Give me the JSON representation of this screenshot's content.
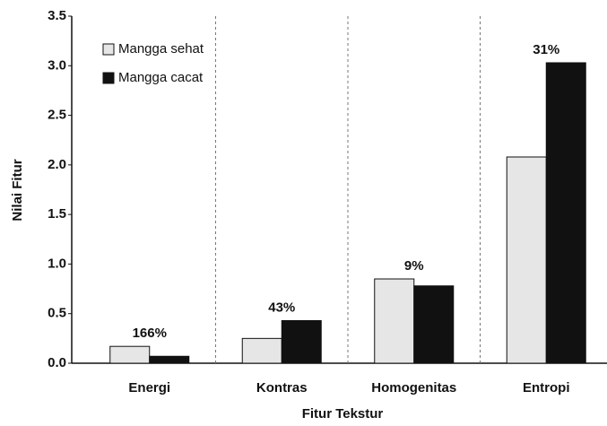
{
  "chart_data": {
    "type": "bar",
    "categories": [
      "Energi",
      "Kontras",
      "Homogenitas",
      "Entropi"
    ],
    "series": [
      {
        "name": "Mangga sehat",
        "color": "#e6e6e6",
        "values": [
          0.17,
          0.25,
          0.85,
          2.08
        ]
      },
      {
        "name": "Mangga cacat",
        "color": "#111111",
        "values": [
          0.07,
          0.43,
          0.78,
          3.03
        ]
      }
    ],
    "annotations": [
      "166%",
      "43%",
      "9%",
      "31%"
    ],
    "xlabel": "Fitur Tekstur",
    "ylabel": "Nilai Fitur",
    "ylim": [
      0,
      3.5
    ],
    "yticks": [
      {
        "value": 0,
        "label": "0.0"
      },
      {
        "value": 0.5,
        "label": "0.5"
      },
      {
        "value": 1,
        "label": "1.0"
      },
      {
        "value": 1.5,
        "label": "1.5"
      },
      {
        "value": 2,
        "label": "2.0"
      },
      {
        "value": 2.5,
        "label": "2.5"
      },
      {
        "value": 3,
        "label": "3.0"
      },
      {
        "value": 3.5,
        "label": "3.5"
      }
    ],
    "legend": "upper left"
  }
}
